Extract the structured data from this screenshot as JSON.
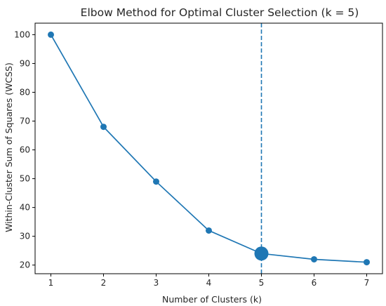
{
  "chart_data": {
    "type": "line",
    "title": "Elbow Method for Optimal Cluster Selection (k = 5)",
    "xlabel": "Number of Clusters (k)",
    "ylabel": "Within-Cluster Sum of Squares (WCSS)",
    "x": [
      1,
      2,
      3,
      4,
      5,
      6,
      7
    ],
    "series": [
      {
        "values": [
          100,
          68,
          49,
          32,
          24,
          22,
          21
        ],
        "color": "#1f77b4"
      }
    ],
    "xlim": [
      0.7,
      7.3
    ],
    "ylim": [
      17,
      104
    ],
    "xticks": [
      "1",
      "2",
      "3",
      "4",
      "5",
      "6",
      "7"
    ],
    "yticks": [
      "20",
      "30",
      "40",
      "50",
      "60",
      "70",
      "80",
      "90",
      "100"
    ],
    "optimal_k": 5,
    "optimal_marker": "vertical-dashed-line",
    "highlighted_point": {
      "x": 5,
      "y": 24
    },
    "grid": false,
    "legend": "none"
  }
}
